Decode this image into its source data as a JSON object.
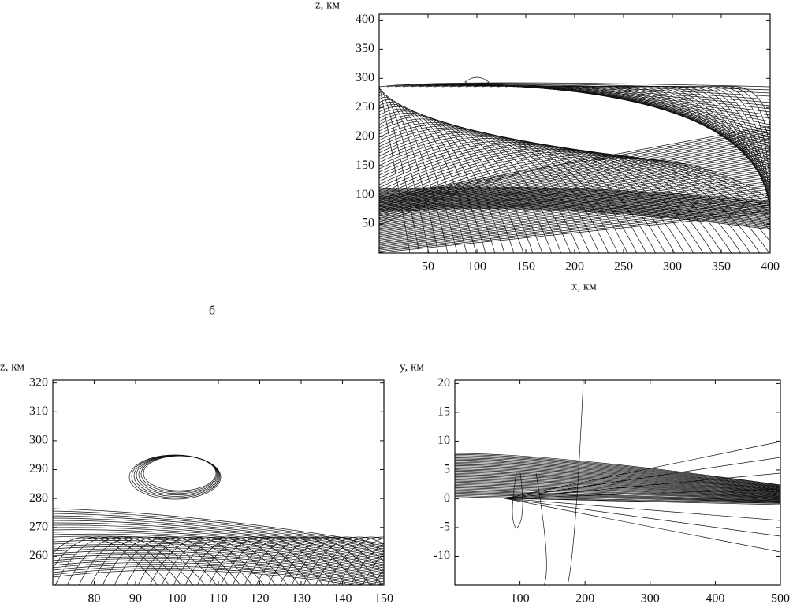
{
  "panels": [
    {
      "y_label": "z, км",
      "x_label": "x, км",
      "xlim": [
        0,
        400
      ],
      "ylim": [
        0,
        410
      ],
      "xticks": [
        50,
        100,
        150,
        200,
        250,
        300,
        350,
        400
      ],
      "yticks": [
        50,
        100,
        150,
        200,
        250,
        300,
        350,
        400
      ]
    },
    {
      "y_label": "z, км",
      "xlim": [
        70,
        150
      ],
      "ylim": [
        250,
        321
      ],
      "xticks": [
        80,
        90,
        100,
        110,
        120,
        130,
        140,
        150
      ],
      "yticks": [
        260,
        270,
        280,
        290,
        300,
        310,
        320
      ]
    },
    {
      "y_label": "y, км",
      "xlim": [
        0,
        500
      ],
      "ylim": [
        -15,
        20.6
      ],
      "xticks": [
        100,
        200,
        300,
        400,
        500
      ],
      "yticks": [
        -10,
        -5,
        0,
        5,
        10,
        15,
        20
      ]
    }
  ],
  "panel_letter": "б"
}
